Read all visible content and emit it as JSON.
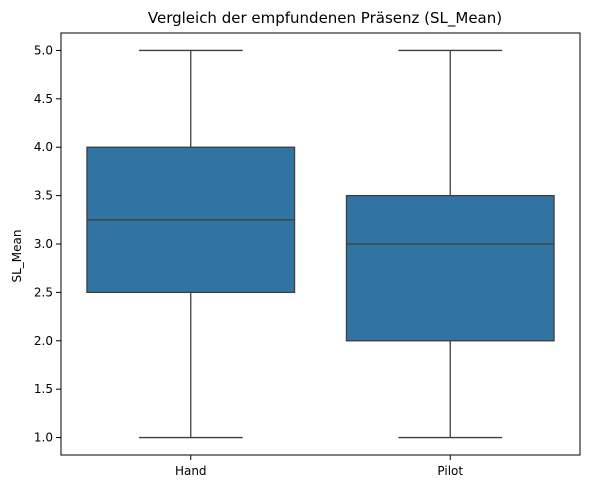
{
  "chart_data": {
    "type": "box",
    "title": "Vergleich der empfundenen Präsenz (SL_Mean)",
    "xlabel": "",
    "ylabel": "SL_Mean",
    "ylim": [
      0.82,
      5.18
    ],
    "yticks": [
      1.0,
      1.5,
      2.0,
      2.5,
      3.0,
      3.5,
      4.0,
      4.5,
      5.0
    ],
    "ytick_labels": [
      "1.0",
      "1.5",
      "2.0",
      "2.5",
      "3.0",
      "3.5",
      "4.0",
      "4.5",
      "5.0"
    ],
    "categories": [
      "Hand",
      "Pilot"
    ],
    "boxes": [
      {
        "category": "Hand",
        "min": 1.0,
        "q1": 2.5,
        "median": 3.25,
        "q3": 4.0,
        "max": 5.0
      },
      {
        "category": "Pilot",
        "min": 1.0,
        "q1": 2.0,
        "median": 3.0,
        "q3": 3.5,
        "max": 5.0
      }
    ],
    "grid": false,
    "colors": {
      "box_fill": "#3274a1",
      "line": "#3f3f3f"
    }
  }
}
